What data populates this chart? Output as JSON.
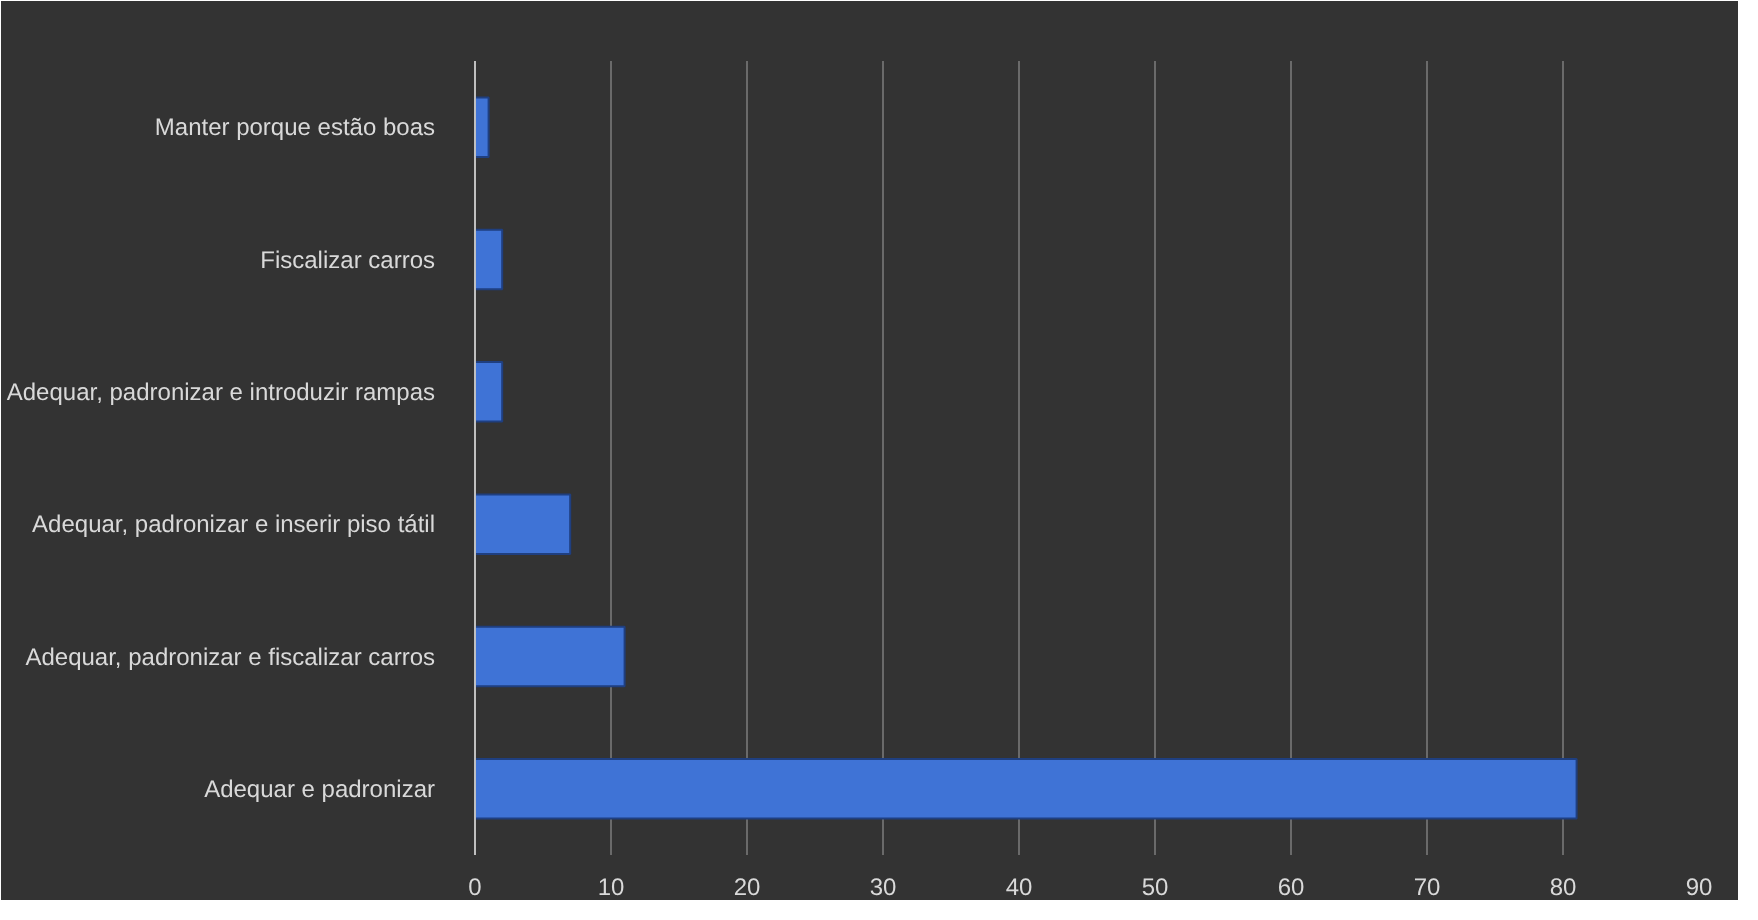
{
  "chart_data": {
    "type": "bar",
    "orientation": "horizontal",
    "categories": [
      "Manter porque estão boas",
      "Fiscalizar carros",
      "Adequar, padronizar e introduzir rampas",
      "Adequar, padronizar e inserir piso tátil",
      "Adequar, padronizar e fiscalizar carros",
      "Adequar e padronizar"
    ],
    "values": [
      1,
      2,
      2,
      7,
      11,
      81
    ],
    "color": "#3f73d6",
    "xlim": [
      0,
      90
    ],
    "xticks": [
      0,
      10,
      20,
      30,
      40,
      50,
      60,
      70,
      80,
      90
    ],
    "grid": "x"
  }
}
